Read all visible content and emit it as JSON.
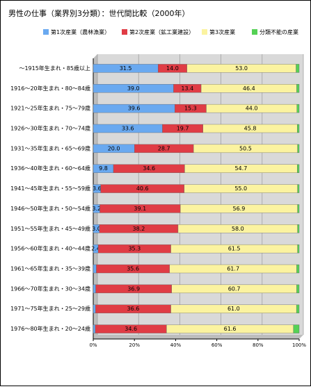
{
  "chart_data": {
    "type": "stacked-barh",
    "title": "男性の仕事（業界別3分類）：世代間比較（2000年）",
    "categories": [
      "～1915年生まれ・85歳以上",
      "1916～20年生まれ・80～84歳",
      "1921～25年生まれ・75～79歳",
      "1926～30年生まれ・70～74歳",
      "1931～35年生まれ・65～69歳",
      "1936～40年生まれ・60～64歳",
      "1941～45年生まれ・55～59歳",
      "1946～50年生まれ・50～54歳",
      "1951～55年生まれ・45～49歳",
      "1956～60年生まれ・40～44歳",
      "1961～65年生まれ・35～39歳",
      "1966～70年生まれ・30～34歳",
      "1971～75年生まれ・25～29歳",
      "1976～80年生まれ・20～24歳"
    ],
    "series": [
      {
        "name": "第1次産業（農林漁業）",
        "color": "#6aa9f0",
        "values": [
          31.5,
          39.0,
          39.6,
          33.6,
          20.0,
          9.8,
          3.6,
          3.2,
          3.0,
          2.4,
          1.5,
          1.2,
          1.1,
          1.0
        ],
        "value_labels": [
          "31.5",
          "39.0",
          "39.6",
          "33.6",
          "20.0",
          "9.8",
          "3.6",
          "3.2",
          "3.0",
          "2.4",
          null,
          null,
          null,
          null
        ]
      },
      {
        "name": "第2次産業（鉱工業建設）",
        "color": "#e03c45",
        "values": [
          14.0,
          13.4,
          15.3,
          19.7,
          28.7,
          34.6,
          40.6,
          39.1,
          38.2,
          35.3,
          35.6,
          36.9,
          36.6,
          34.6
        ],
        "value_labels": [
          "14.0",
          "13.4",
          "15.3",
          "19.7",
          "28.7",
          "34.6",
          "40.6",
          "39.1",
          "38.2",
          "35.3",
          "35.6",
          "36.9",
          "36.6",
          "34.6"
        ]
      },
      {
        "name": "第3次産業",
        "color": "#fbf3a0",
        "values": [
          53.0,
          46.4,
          44.0,
          45.8,
          50.5,
          54.7,
          55.0,
          56.9,
          58.0,
          61.5,
          61.7,
          60.7,
          61.0,
          61.6
        ],
        "value_labels": [
          "53.0",
          "46.4",
          "44.0",
          "45.8",
          "50.5",
          "54.7",
          "55.0",
          "56.9",
          "58.0",
          "61.5",
          "61.7",
          "60.7",
          "61.0",
          "61.6"
        ]
      },
      {
        "name": "分類不能の産業",
        "color": "#55d155",
        "values": [
          1.5,
          1.2,
          1.1,
          0.9,
          0.8,
          0.9,
          0.8,
          0.8,
          0.8,
          0.8,
          1.2,
          1.2,
          1.3,
          2.8
        ]
      }
    ],
    "xlim": [
      0,
      100
    ],
    "xticks": [
      {
        "value": 0,
        "label": "0%"
      },
      {
        "value": 20,
        "label": "20%"
      },
      {
        "value": 40,
        "label": "40%"
      },
      {
        "value": 60,
        "label": "60%"
      },
      {
        "value": 80,
        "label": "80%"
      },
      {
        "value": 100,
        "label": "100%"
      }
    ],
    "grid": true
  }
}
